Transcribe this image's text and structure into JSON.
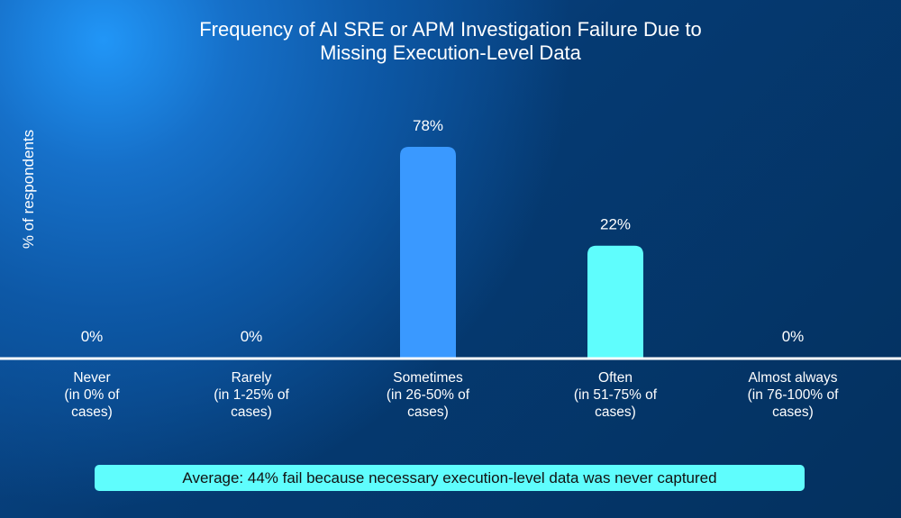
{
  "chart_data": {
    "type": "bar",
    "title": "Frequency of AI SRE or APM Investigation Failure Due to Missing Execution-Level Data",
    "title_lines": [
      "Frequency of AI SRE or APM Investigation Failure Due to",
      "Missing Execution-Level Data"
    ],
    "ylabel": "% of respondents",
    "xlabel": "",
    "categories": [
      [
        "Never",
        "(in 0% of",
        "cases)"
      ],
      [
        "Rarely",
        "(in 1-25% of",
        "cases)"
      ],
      [
        "Sometimes",
        "(in 26-50% of",
        "cases)"
      ],
      [
        "Often",
        "(in 51-75% of",
        "cases)"
      ],
      [
        "Almost always",
        "(in 76-100% of",
        "cases)"
      ]
    ],
    "values": [
      0,
      0,
      78,
      22,
      0
    ],
    "data_labels": [
      "0%",
      "0%",
      "78%",
      "22%",
      "0%"
    ],
    "bar_colors": [
      "#3a99ff",
      "#3a99ff",
      "#3a99ff",
      "#5ffdfd",
      "#5ffdfd"
    ],
    "ylim": [
      0,
      100
    ],
    "grid": false,
    "legend": "none",
    "annotation": "Average: 44% fail because necessary execution-level data was never captured"
  },
  "colors": {
    "background": "#053a72",
    "accent": "#5ffdfd",
    "bar_primary": "#3a99ff"
  }
}
